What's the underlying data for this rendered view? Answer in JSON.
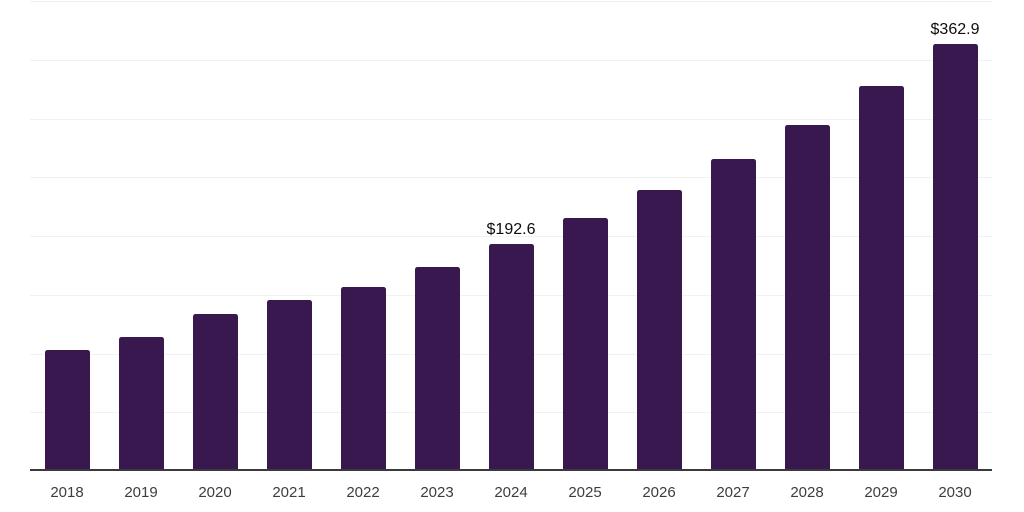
{
  "chart_data": {
    "type": "bar",
    "title": "",
    "xlabel": "",
    "ylabel": "",
    "categories": [
      "2018",
      "2019",
      "2020",
      "2021",
      "2022",
      "2023",
      "2024",
      "2025",
      "2026",
      "2027",
      "2028",
      "2029",
      "2030"
    ],
    "values": [
      102.0,
      113.4,
      132.4,
      144.3,
      155.6,
      173.2,
      192.6,
      214.1,
      237.9,
      264.5,
      293.9,
      326.6,
      362.9
    ],
    "data_labels": [
      "",
      "",
      "",
      "",
      "",
      "",
      "$192.6",
      "",
      "",
      "",
      "",
      "",
      "$362.9"
    ],
    "ylim": [
      0,
      400
    ],
    "gridline_step": 50,
    "grid": true,
    "legend": false,
    "y_tick_labels_shown": false,
    "bar_color": "#38184e",
    "axis_line_color": "#3a3a3c",
    "gridline_color": "#f1f1f3",
    "value_label_color": "#0d0d0d",
    "tick_label_color": "#3d3d3d"
  }
}
